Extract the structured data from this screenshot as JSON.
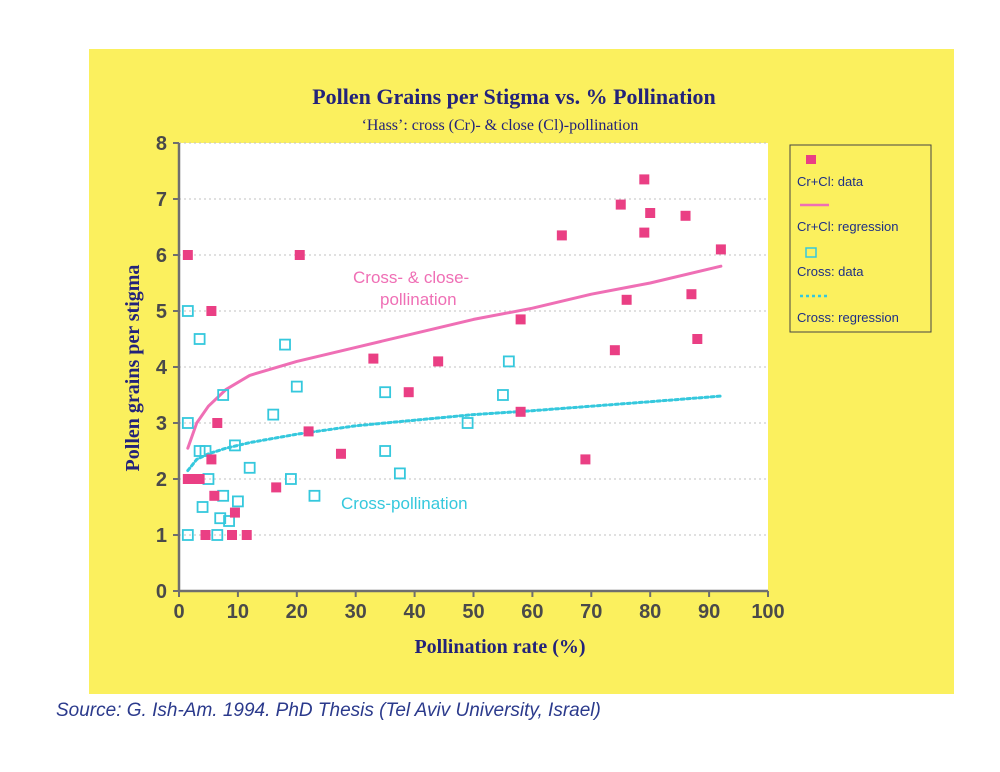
{
  "source": "Source: G. Ish-Am. 1994. PhD Thesis (Tel Aviv University, Israel)",
  "colors": {
    "panel_bg": "#fbf05e",
    "plot_bg": "#ffffff",
    "title": "#23237a",
    "crcl": "#ea3f84",
    "crcl_line": "#ef6fb5",
    "cross": "#35c8dd",
    "axis": "#6e6e6e",
    "grid": "#c0c0c0"
  },
  "chart_data": {
    "type": "scatter",
    "title": "Pollen Grains per Stigma vs. % Pollination",
    "subtitle": "‘Hass’: cross (Cr)- & close (Cl)-pollination",
    "xlabel": "Pollination rate (%)",
    "ylabel": "Pollen grains per stigma",
    "xlim": [
      0,
      100
    ],
    "ylim": [
      0,
      8
    ],
    "x_ticks": [
      0,
      10,
      20,
      30,
      40,
      50,
      60,
      70,
      80,
      90,
      100
    ],
    "y_ticks": [
      0,
      1,
      2,
      3,
      4,
      5,
      6,
      7,
      8
    ],
    "grid": "horizontal dotted",
    "legend_position": "right",
    "annotations": [
      {
        "text": "Cross- & close-",
        "series": "Cr+Cl: regression"
      },
      {
        "text": "pollination",
        "series": "Cr+Cl: regression"
      },
      {
        "text": "Cross-pollination",
        "series": "Cross: regression"
      }
    ],
    "series": [
      {
        "name": "Cr+Cl: data",
        "kind": "points",
        "marker": "filled-square",
        "points": [
          [
            1.5,
            6.0
          ],
          [
            1.5,
            2.0
          ],
          [
            2.5,
            2.0
          ],
          [
            3.5,
            2.0
          ],
          [
            4.5,
            1.0
          ],
          [
            5.5,
            2.35
          ],
          [
            5.5,
            5.0
          ],
          [
            6,
            1.7
          ],
          [
            6.5,
            3.0
          ],
          [
            9,
            1.0
          ],
          [
            9.5,
            1.4
          ],
          [
            11.5,
            1.0
          ],
          [
            16.5,
            1.85
          ],
          [
            20.5,
            6.0
          ],
          [
            22,
            2.85
          ],
          [
            27.5,
            2.45
          ],
          [
            33,
            4.15
          ],
          [
            39,
            3.55
          ],
          [
            44,
            4.1
          ],
          [
            58,
            4.85
          ],
          [
            58,
            3.2
          ],
          [
            65,
            6.35
          ],
          [
            69,
            2.35
          ],
          [
            74,
            4.3
          ],
          [
            75,
            6.9
          ],
          [
            76,
            5.2
          ],
          [
            79,
            6.4
          ],
          [
            79,
            7.35
          ],
          [
            80,
            6.75
          ],
          [
            86,
            6.7
          ],
          [
            87,
            5.3
          ],
          [
            88,
            4.5
          ],
          [
            92,
            6.1
          ]
        ]
      },
      {
        "name": "Cr+Cl: regression",
        "kind": "line",
        "style": "solid",
        "points": [
          [
            1.5,
            2.55
          ],
          [
            3,
            3.0
          ],
          [
            5,
            3.3
          ],
          [
            8,
            3.6
          ],
          [
            12,
            3.85
          ],
          [
            20,
            4.1
          ],
          [
            30,
            4.35
          ],
          [
            40,
            4.6
          ],
          [
            50,
            4.85
          ],
          [
            60,
            5.05
          ],
          [
            70,
            5.3
          ],
          [
            80,
            5.5
          ],
          [
            92,
            5.8
          ]
        ]
      },
      {
        "name": "Cross: data",
        "kind": "points",
        "marker": "open-square",
        "points": [
          [
            1.5,
            5.0
          ],
          [
            1.5,
            3.0
          ],
          [
            1.5,
            1.0
          ],
          [
            3.5,
            4.5
          ],
          [
            3.5,
            2.5
          ],
          [
            4,
            1.5
          ],
          [
            4.5,
            2.5
          ],
          [
            5,
            2.0
          ],
          [
            6.5,
            1.0
          ],
          [
            7,
            1.3
          ],
          [
            7.5,
            3.5
          ],
          [
            7.5,
            1.7
          ],
          [
            8.5,
            1.25
          ],
          [
            9.5,
            2.6
          ],
          [
            10,
            1.6
          ],
          [
            12,
            2.2
          ],
          [
            16,
            3.15
          ],
          [
            18,
            4.4
          ],
          [
            19,
            2.0
          ],
          [
            20,
            3.65
          ],
          [
            23,
            1.7
          ],
          [
            35,
            3.55
          ],
          [
            35,
            2.5
          ],
          [
            37.5,
            2.1
          ],
          [
            49,
            3.0
          ],
          [
            55,
            3.5
          ],
          [
            56,
            4.1
          ]
        ]
      },
      {
        "name": "Cross: regression",
        "kind": "line",
        "style": "dotted",
        "points": [
          [
            1.5,
            2.15
          ],
          [
            3,
            2.35
          ],
          [
            5,
            2.45
          ],
          [
            8,
            2.55
          ],
          [
            12,
            2.65
          ],
          [
            20,
            2.8
          ],
          [
            30,
            2.95
          ],
          [
            40,
            3.05
          ],
          [
            50,
            3.15
          ],
          [
            60,
            3.22
          ],
          [
            70,
            3.3
          ],
          [
            80,
            3.38
          ],
          [
            92,
            3.48
          ]
        ]
      }
    ]
  }
}
